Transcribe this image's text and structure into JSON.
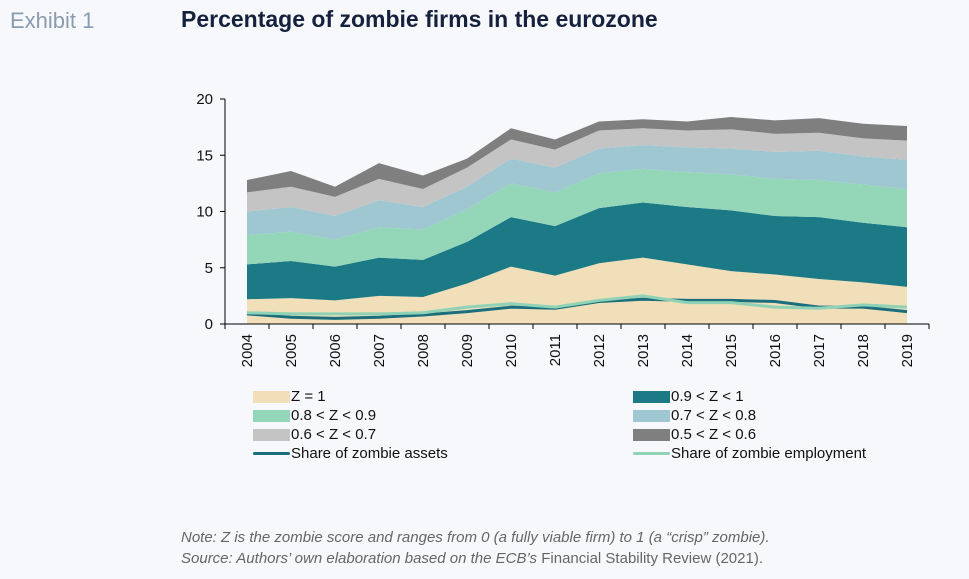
{
  "header": {
    "exhibit": "Exhibit 1",
    "title": "Percentage of zombie firms in the eurozone"
  },
  "chart_data": {
    "type": "area",
    "stacked": true,
    "title": "Percentage of zombie firms in the eurozone",
    "x": [
      "2004",
      "2005",
      "2006",
      "2007",
      "2008",
      "2009",
      "2010",
      "2011",
      "2012",
      "2013",
      "2014",
      "2015",
      "2016",
      "2017",
      "2018",
      "2019"
    ],
    "ylim": [
      0,
      20
    ],
    "yticks": [
      0,
      5,
      10,
      15,
      20
    ],
    "grid": false,
    "legend_position": "bottom",
    "series": [
      {
        "name": "Z = 1",
        "color": "#f1dfb9",
        "values": [
          2.2,
          2.3,
          2.1,
          2.5,
          2.4,
          3.6,
          5.1,
          4.3,
          5.4,
          5.9,
          5.3,
          4.7,
          4.4,
          4.0,
          3.7,
          3.3
        ]
      },
      {
        "name": "0.9 < Z < 1",
        "color": "#1b7a86",
        "values": [
          3.1,
          3.3,
          3.0,
          3.4,
          3.3,
          3.7,
          4.4,
          4.4,
          4.9,
          4.9,
          5.1,
          5.4,
          5.2,
          5.5,
          5.3,
          5.3
        ]
      },
      {
        "name": "0.8 < Z < 0.9",
        "color": "#93d6b8",
        "values": [
          2.6,
          2.6,
          2.4,
          2.7,
          2.7,
          2.9,
          3.0,
          3.0,
          3.1,
          3.0,
          3.1,
          3.2,
          3.3,
          3.3,
          3.4,
          3.4
        ]
      },
      {
        "name": "0.7 < Z < 0.8",
        "color": "#9ec7d2",
        "values": [
          2.1,
          2.2,
          2.1,
          2.4,
          2.0,
          2.0,
          2.2,
          2.2,
          2.2,
          2.1,
          2.2,
          2.3,
          2.4,
          2.6,
          2.5,
          2.6
        ]
      },
      {
        "name": "0.6 < Z < 0.7",
        "color": "#c4c4c4",
        "values": [
          1.7,
          1.8,
          1.7,
          1.9,
          1.6,
          1.7,
          1.7,
          1.6,
          1.6,
          1.5,
          1.5,
          1.7,
          1.6,
          1.6,
          1.6,
          1.7
        ]
      },
      {
        "name": "0.5 < Z < 0.6",
        "color": "#7f7f7f",
        "values": [
          1.1,
          1.4,
          0.9,
          1.4,
          1.2,
          0.8,
          1.0,
          0.9,
          0.8,
          0.8,
          0.8,
          1.1,
          1.2,
          1.3,
          1.3,
          1.3
        ]
      }
    ],
    "lines": [
      {
        "name": "Share of zombie assets",
        "color": "#1b6e7d",
        "values": [
          0.9,
          0.6,
          0.5,
          0.6,
          0.8,
          1.1,
          1.5,
          1.4,
          2.0,
          2.2,
          2.1,
          2.1,
          2.0,
          1.5,
          1.5,
          1.1
        ]
      },
      {
        "name": "Share of zombie employment",
        "color": "#8fd2b5",
        "values": [
          1.0,
          0.9,
          0.9,
          0.9,
          1.0,
          1.5,
          1.8,
          1.5,
          2.1,
          2.5,
          1.9,
          1.9,
          1.5,
          1.4,
          1.7,
          1.5
        ]
      }
    ]
  },
  "note": {
    "line1": "Note: Z is the zombie score and ranges from 0 (a fully viable firm) to 1 (a “crisp” zombie).",
    "line2_italic": "Source: Authors’ own elaboration based on the ECB’s",
    "line2_plain": " Financial Stability Review (2021)."
  }
}
